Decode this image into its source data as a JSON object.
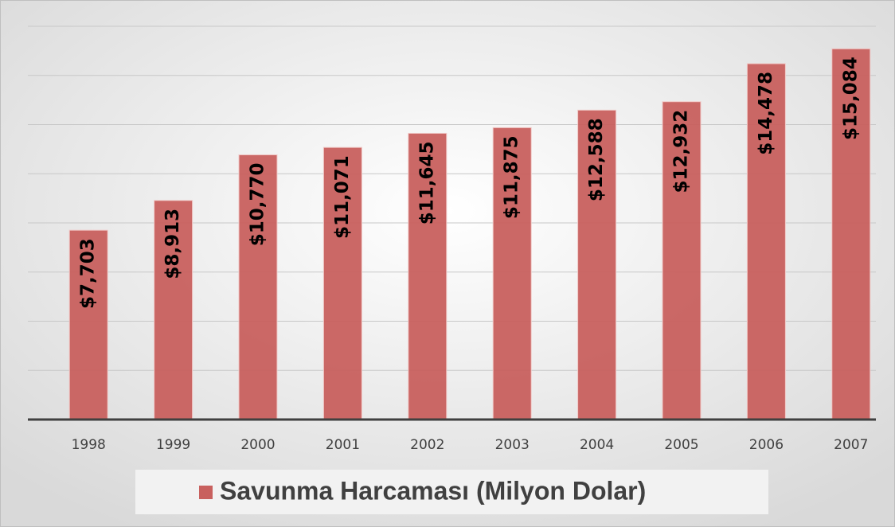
{
  "chart_data": {
    "type": "bar",
    "categories": [
      "1998",
      "1999",
      "2000",
      "2001",
      "2002",
      "2003",
      "2004",
      "2005",
      "2006",
      "2007"
    ],
    "series": [
      {
        "name": "Savunma Harcaması (Milyon Dolar)",
        "color": "#c8605e",
        "values": [
          7703,
          8913,
          10770,
          11071,
          11645,
          11875,
          12588,
          12932,
          14478,
          15084
        ],
        "value_labels": [
          "$7,703",
          "$8,913",
          "$10,770",
          "$11,071",
          "$11,645",
          "$11,875",
          "$12,588",
          "$12,932",
          "$14,478",
          "$15,084"
        ]
      }
    ],
    "ylim": [
      0,
      16000
    ],
    "yticks": [
      0,
      2000,
      4000,
      6000,
      8000,
      10000,
      12000,
      14000,
      16000
    ],
    "grid": true
  }
}
